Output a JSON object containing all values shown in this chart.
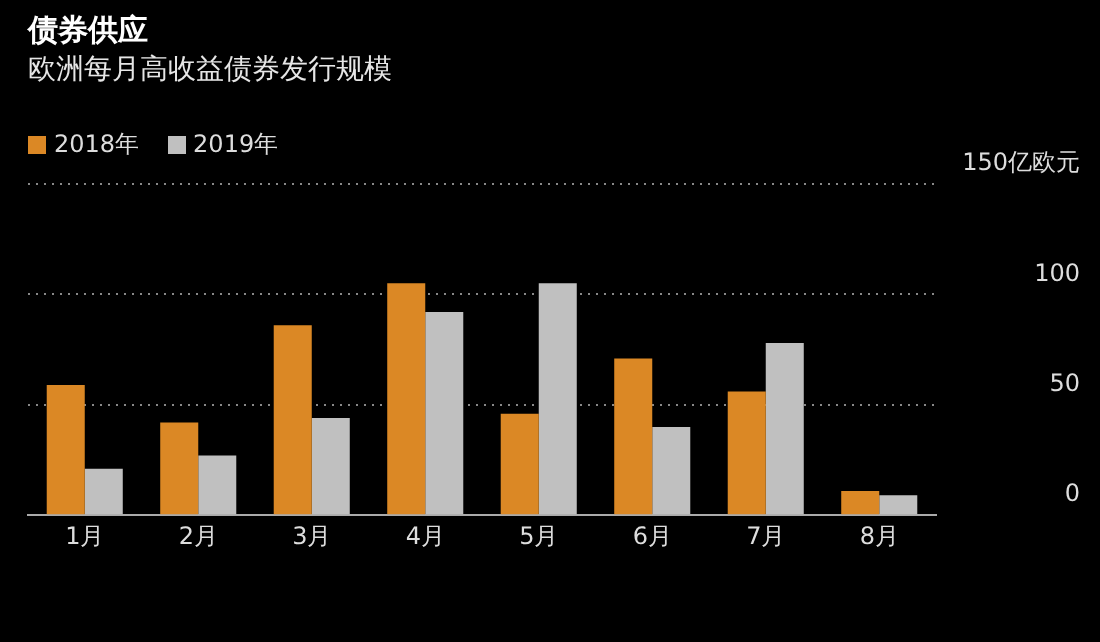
{
  "chart_data": {
    "type": "bar",
    "title": "债券供应",
    "subtitle": "欧洲每月高收益债券发行规模",
    "categories": [
      "1月",
      "2月",
      "3月",
      "4月",
      "5月",
      "6月",
      "7月",
      "8月"
    ],
    "series": [
      {
        "name": "2018年",
        "color": "#db8825",
        "values": [
          59,
          42,
          86,
          105,
          46,
          71,
          56,
          11
        ]
      },
      {
        "name": "2019年",
        "color": "#c0c0c0",
        "values": [
          21,
          27,
          44,
          92,
          105,
          40,
          78,
          9
        ]
      }
    ],
    "ylim": [
      0,
      150
    ],
    "yticks": [
      0,
      50,
      100,
      {
        "value": 150,
        "label": "150亿欧元"
      }
    ],
    "grid": "y",
    "legend": "top left"
  }
}
